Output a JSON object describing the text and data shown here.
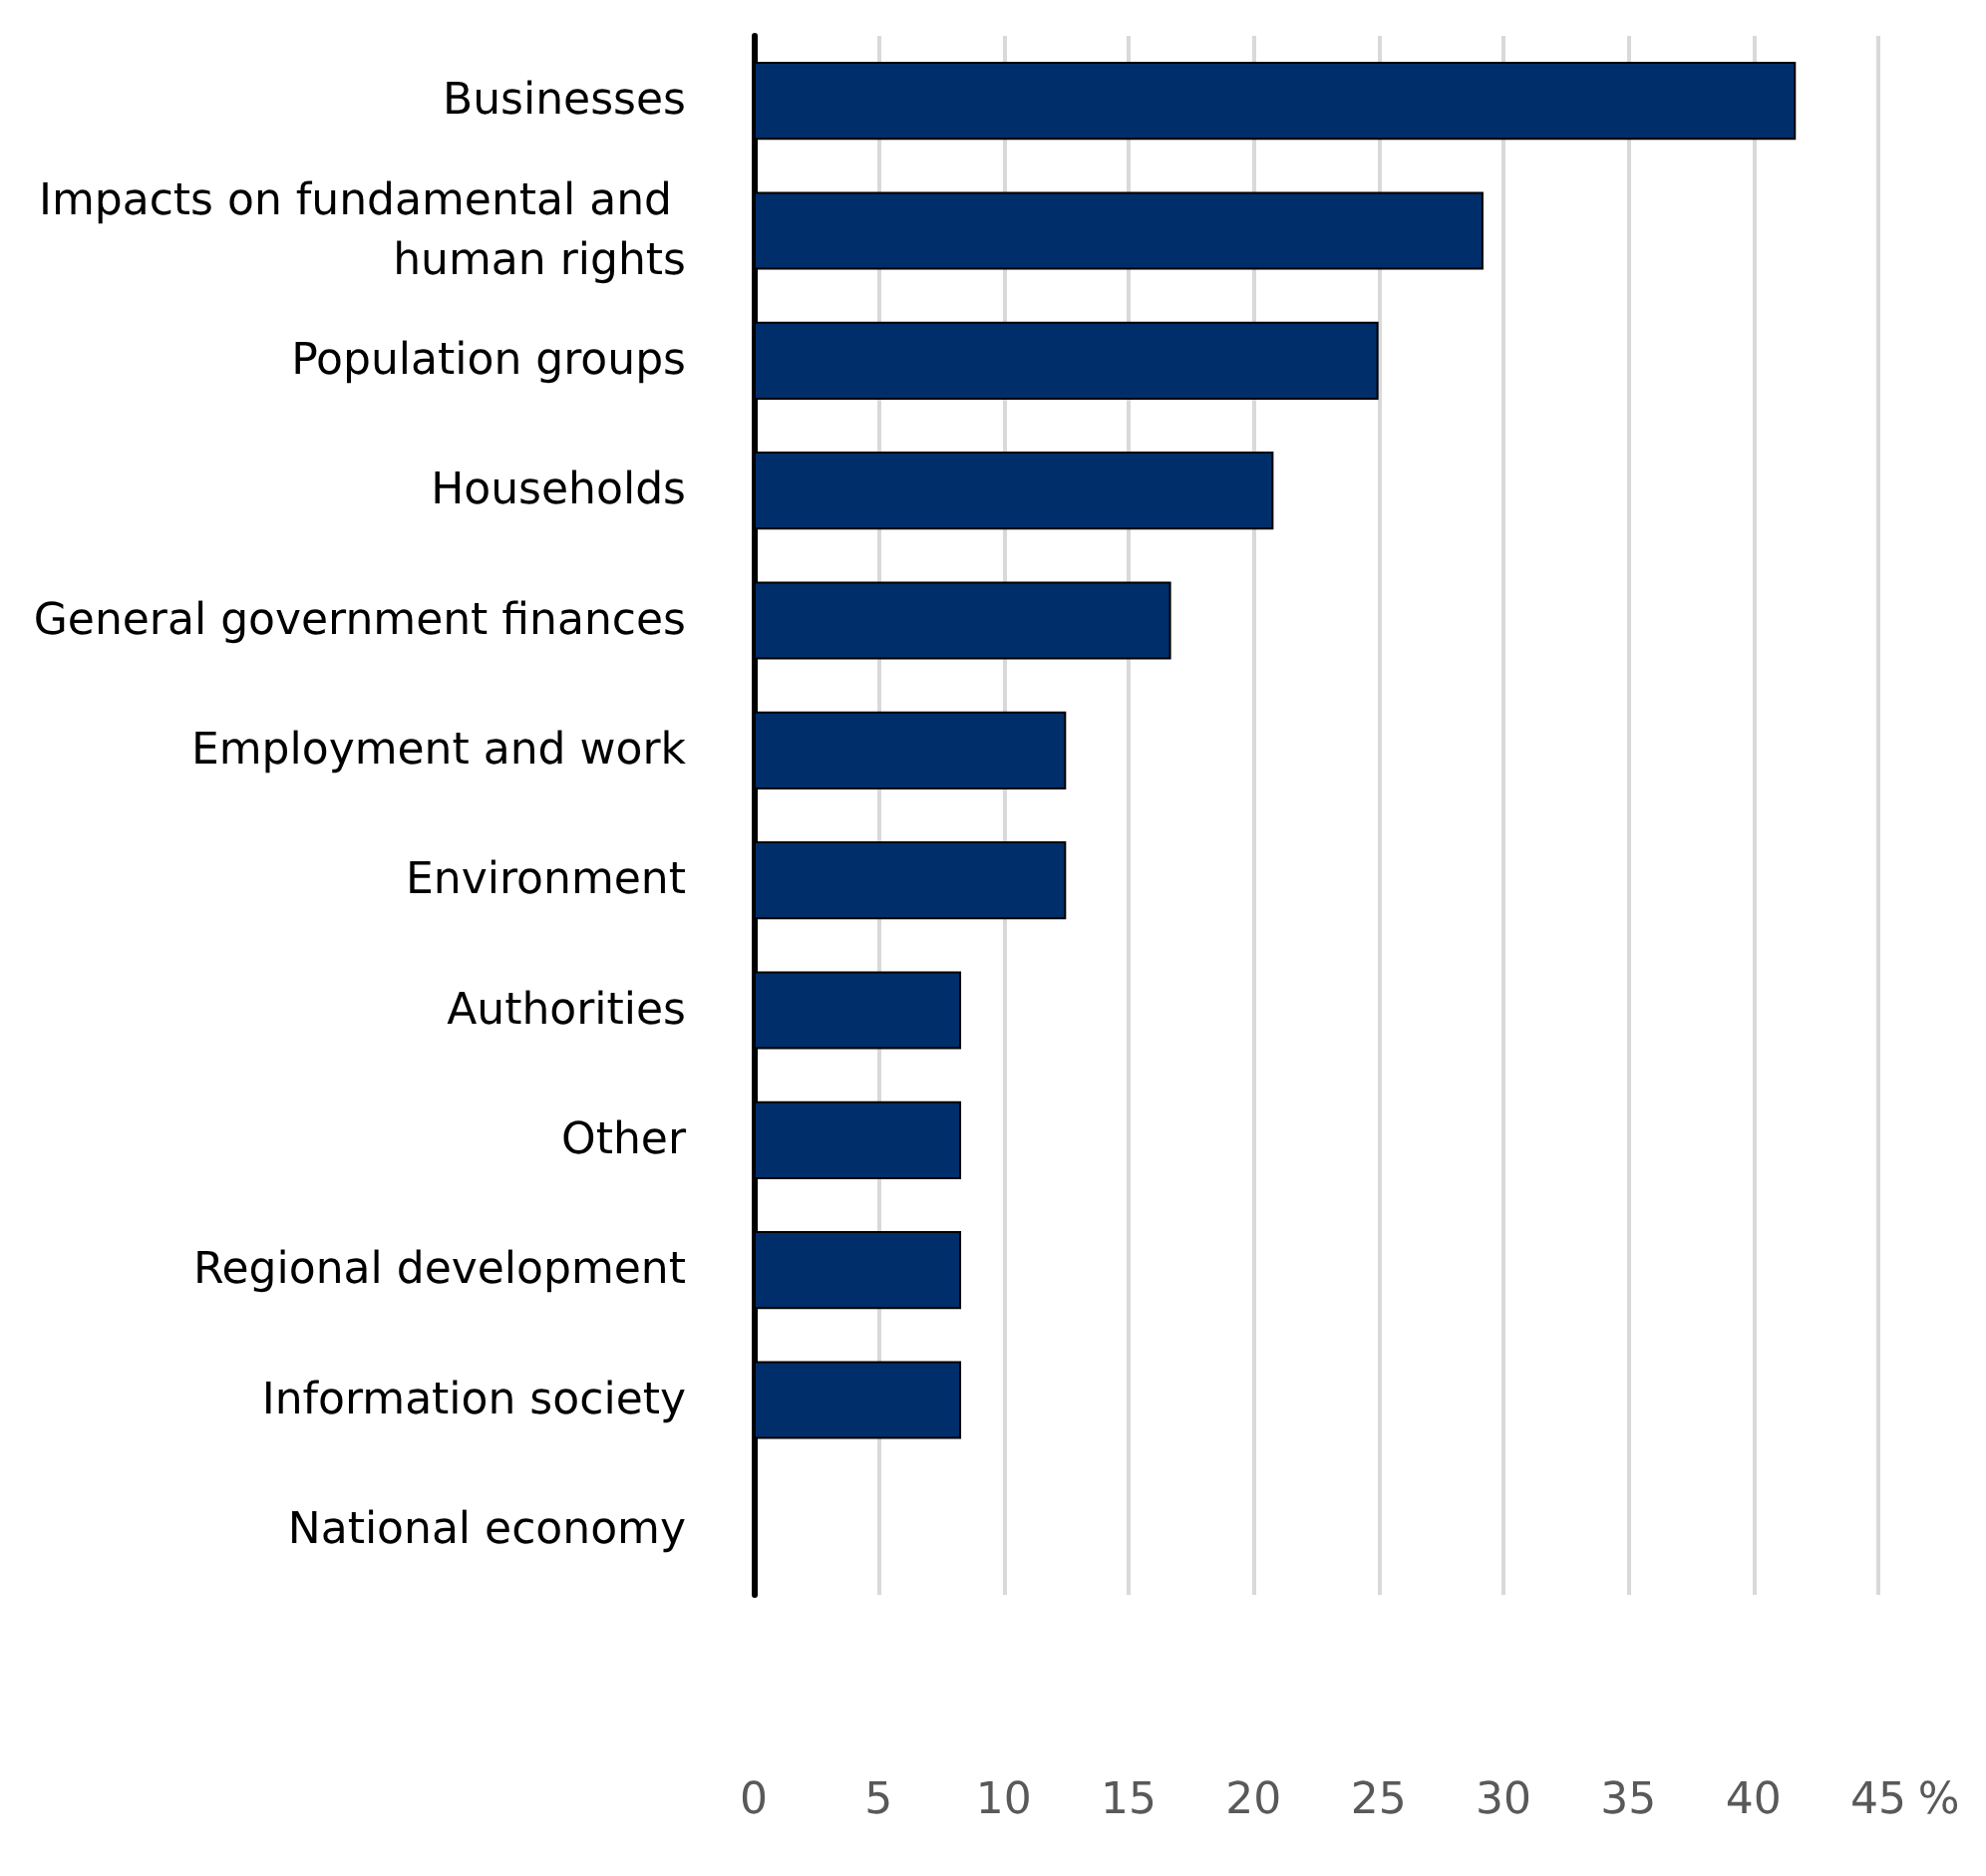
{
  "chart_data": {
    "type": "bar",
    "orientation": "horizontal",
    "xlabel": "%",
    "categories": [
      "Businesses",
      "Impacts on fundamental and human rights",
      "Population groups",
      "Households",
      "General government finances",
      "Employment and work",
      "Environment",
      "Authorities",
      "Other",
      "Regional development",
      "Information society",
      "National economy"
    ],
    "values": [
      41.7,
      29.2,
      25.0,
      20.8,
      16.7,
      12.5,
      12.5,
      8.3,
      8.3,
      8.3,
      8.3,
      0
    ],
    "color": "#002e6a",
    "xlim": [
      0,
      45
    ],
    "xticks": [
      0,
      5,
      10,
      15,
      20,
      25,
      30,
      35,
      40,
      45
    ],
    "grid": "x"
  }
}
